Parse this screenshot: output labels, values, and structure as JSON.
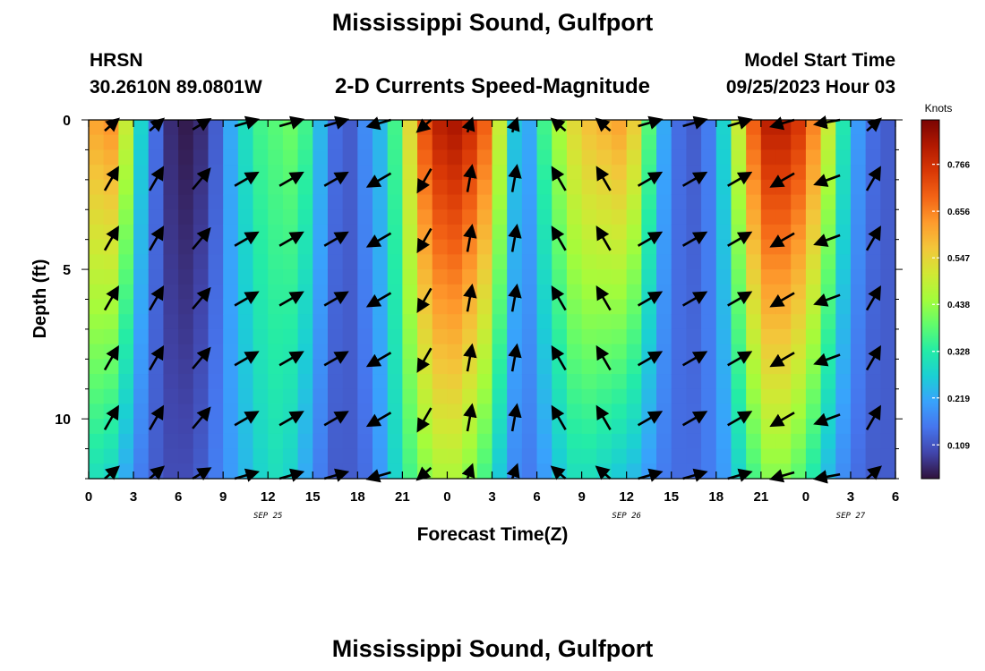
{
  "page": {
    "title_top": "Mississippi Sound, Gulfport",
    "title_bottom": "Mississippi Sound, Gulfport"
  },
  "header": {
    "station_code": "HRSN",
    "coordinates": "30.2610N  89.0801W",
    "product": "2-D Currents Speed-Magnitude",
    "model_start_label": "Model Start Time",
    "model_start_value": "09/25/2023 Hour 03"
  },
  "colors": {
    "colormap": [
      "#30123b",
      "#4145ab",
      "#4675ed",
      "#39a2fc",
      "#1bcfd4",
      "#24eca6",
      "#61fc6c",
      "#a4fc3b",
      "#d1e834",
      "#f3c63a",
      "#fe9b2d",
      "#f36315",
      "#d93806",
      "#b11901",
      "#7a0403"
    ],
    "vectors": "#000000"
  },
  "chart_data": {
    "type": "heatmap",
    "title": "2-D Currents Speed-Magnitude",
    "xlabel": "Forecast Time(Z)",
    "ylabel": "Depth (ft)",
    "x_tick_labels": [
      "0",
      "3",
      "6",
      "9",
      "12",
      "15",
      "18",
      "21",
      "0",
      "3",
      "6",
      "9",
      "12",
      "15",
      "18",
      "21",
      "0",
      "3",
      "6"
    ],
    "x_range_hours": [
      0,
      54
    ],
    "date_labels": [
      {
        "text": "SEP 25",
        "hour": 12
      },
      {
        "text": "SEP 26",
        "hour": 36
      },
      {
        "text": "SEP 27",
        "hour": 51
      }
    ],
    "y_tick_labels": [
      "0",
      "5",
      "10"
    ],
    "y_range_ft": [
      0,
      12
    ],
    "y_inverted": true,
    "colorbar": {
      "label": "Knots",
      "ticks": [
        "0.766",
        "0.656",
        "0.547",
        "0.438",
        "0.328",
        "0.219",
        "0.109"
      ],
      "range": [
        0.03,
        0.87
      ]
    },
    "speed_profile": {
      "hour": [
        0,
        1,
        2,
        3,
        4,
        5,
        6,
        7,
        8,
        9,
        10,
        11,
        12,
        13,
        14,
        15,
        16,
        17,
        18,
        19,
        20,
        21,
        22,
        23,
        24,
        25,
        26,
        27,
        28,
        29,
        30,
        31,
        32,
        33,
        34,
        35,
        36,
        37,
        38,
        39,
        40,
        41,
        42,
        43,
        44,
        45,
        46,
        47,
        48,
        49,
        50,
        51,
        52,
        53,
        54
      ],
      "surface_knots": [
        0.62,
        0.64,
        0.5,
        0.28,
        0.14,
        0.06,
        0.04,
        0.06,
        0.12,
        0.22,
        0.3,
        0.36,
        0.38,
        0.4,
        0.36,
        0.24,
        0.14,
        0.12,
        0.18,
        0.24,
        0.36,
        0.54,
        0.72,
        0.8,
        0.82,
        0.78,
        0.7,
        0.5,
        0.26,
        0.22,
        0.36,
        0.46,
        0.54,
        0.58,
        0.6,
        0.62,
        0.56,
        0.38,
        0.22,
        0.14,
        0.12,
        0.16,
        0.28,
        0.5,
        0.7,
        0.8,
        0.8,
        0.76,
        0.66,
        0.5,
        0.32,
        0.2,
        0.14,
        0.12,
        0.12
      ],
      "bottom_knots": [
        0.3,
        0.28,
        0.22,
        0.16,
        0.12,
        0.1,
        0.1,
        0.12,
        0.16,
        0.2,
        0.24,
        0.28,
        0.3,
        0.28,
        0.22,
        0.16,
        0.12,
        0.12,
        0.14,
        0.2,
        0.28,
        0.36,
        0.42,
        0.46,
        0.46,
        0.42,
        0.36,
        0.26,
        0.18,
        0.16,
        0.2,
        0.26,
        0.3,
        0.3,
        0.28,
        0.26,
        0.24,
        0.2,
        0.16,
        0.14,
        0.14,
        0.16,
        0.2,
        0.28,
        0.36,
        0.42,
        0.42,
        0.38,
        0.32,
        0.24,
        0.18,
        0.14,
        0.12,
        0.12,
        0.12
      ]
    },
    "vectors": {
      "hours": [
        1.5,
        4.5,
        7.5,
        10.5,
        13.5,
        16.5,
        19.5,
        22.5,
        25.5,
        28.5,
        31.5,
        34.5,
        37.5,
        40.5,
        43.5,
        46.5,
        49.5,
        52.5
      ],
      "depths_ft": [
        0,
        2,
        4,
        6,
        8,
        10,
        12
      ],
      "direction_deg": [
        60,
        60,
        50,
        30,
        30,
        30,
        210,
        240,
        80,
        80,
        120,
        120,
        30,
        30,
        30,
        210,
        200,
        60
      ],
      "convention": "degrees counterclockwise from east (screen), arrows point toward flow"
    }
  }
}
